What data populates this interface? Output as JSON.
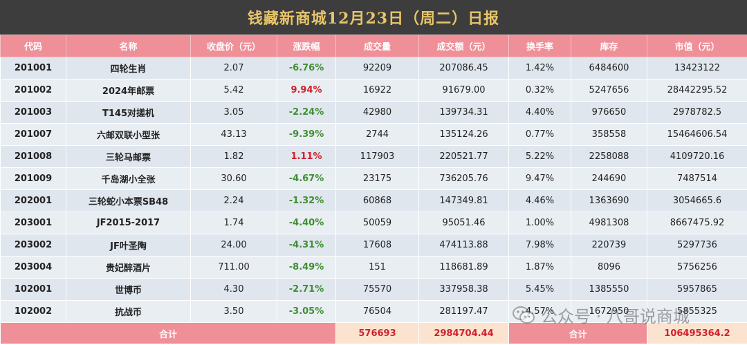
{
  "title": "钱藏新商城12月23日（周二）日报",
  "headers": [
    "代码",
    "名称",
    "收盘价（元）",
    "涨跌幅",
    "成交量",
    "成交额（元）",
    "换手率",
    "库存",
    "市值（元）"
  ],
  "rows": [
    {
      "code": "201001",
      "name": "四轮生肖",
      "close": "2.07",
      "change": "-6.76%",
      "dir": "neg",
      "volume": "92209",
      "amount": "207086.45",
      "turnover": "1.42%",
      "stock": "6484600",
      "cap": "13423122"
    },
    {
      "code": "201002",
      "name": "2024年邮票",
      "close": "5.42",
      "change": "9.94%",
      "dir": "pos",
      "volume": "16922",
      "amount": "91679.00",
      "turnover": "0.32%",
      "stock": "5247656",
      "cap": "28442295.52"
    },
    {
      "code": "201003",
      "name": "T145对搓机",
      "close": "3.05",
      "change": "-2.24%",
      "dir": "neg",
      "volume": "42980",
      "amount": "139734.31",
      "turnover": "4.40%",
      "stock": "976650",
      "cap": "2978782.5"
    },
    {
      "code": "201007",
      "name": "六邮双联小型张",
      "close": "43.13",
      "change": "-9.39%",
      "dir": "neg",
      "volume": "2744",
      "amount": "135124.26",
      "turnover": "0.77%",
      "stock": "358558",
      "cap": "15464606.54"
    },
    {
      "code": "201008",
      "name": "三轮马邮票",
      "close": "1.82",
      "change": "1.11%",
      "dir": "pos",
      "volume": "117903",
      "amount": "220521.77",
      "turnover": "5.22%",
      "stock": "2258088",
      "cap": "4109720.16"
    },
    {
      "code": "201009",
      "name": "千岛湖小全张",
      "close": "30.60",
      "change": "-4.67%",
      "dir": "neg",
      "volume": "23175",
      "amount": "736205.76",
      "turnover": "9.47%",
      "stock": "244690",
      "cap": "7487514"
    },
    {
      "code": "202001",
      "name": "三轮蛇小本票SB48",
      "close": "2.24",
      "change": "-1.32%",
      "dir": "neg",
      "volume": "60868",
      "amount": "147349.81",
      "turnover": "4.46%",
      "stock": "1363690",
      "cap": "3054665.6"
    },
    {
      "code": "203001",
      "name": "JF2015-2017",
      "close": "1.74",
      "change": "-4.40%",
      "dir": "neg",
      "volume": "50059",
      "amount": "95051.46",
      "turnover": "1.00%",
      "stock": "4981308",
      "cap": "8667475.92"
    },
    {
      "code": "203002",
      "name": "JF叶圣陶",
      "close": "24.00",
      "change": "-4.31%",
      "dir": "neg",
      "volume": "17608",
      "amount": "474113.88",
      "turnover": "7.98%",
      "stock": "220739",
      "cap": "5297736"
    },
    {
      "code": "203004",
      "name": "贵妃醉酒片",
      "close": "711.00",
      "change": "-8.49%",
      "dir": "neg",
      "volume": "151",
      "amount": "118681.89",
      "turnover": "1.87%",
      "stock": "8096",
      "cap": "5756256"
    },
    {
      "code": "102001",
      "name": "世博币",
      "close": "4.30",
      "change": "-2.71%",
      "dir": "neg",
      "volume": "75570",
      "amount": "337958.38",
      "turnover": "5.45%",
      "stock": "1385550",
      "cap": "5957865"
    },
    {
      "code": "102002",
      "name": "抗战币",
      "close": "3.50",
      "change": "-3.05%",
      "dir": "neg",
      "volume": "76504",
      "amount": "281197.47",
      "turnover": "4.57%",
      "stock": "1672950",
      "cap": "5855325"
    }
  ],
  "footer": {
    "label_left": "合计",
    "total_volume": "576693",
    "total_amount": "2984704.44",
    "label_right": "合计",
    "total_cap": "106495364.2"
  },
  "watermark": {
    "icon": "wechat-icon",
    "text": "公众号 · 八哥说商城"
  },
  "colors": {
    "title_bg": "#3d3d3d",
    "title_text": "#e8c56a",
    "header_bg": "#ef8f98",
    "row_bg": "#dfe6ee",
    "negative": "#3f8f30",
    "positive": "#d0202a",
    "footer_cream": "#fce3cf"
  }
}
